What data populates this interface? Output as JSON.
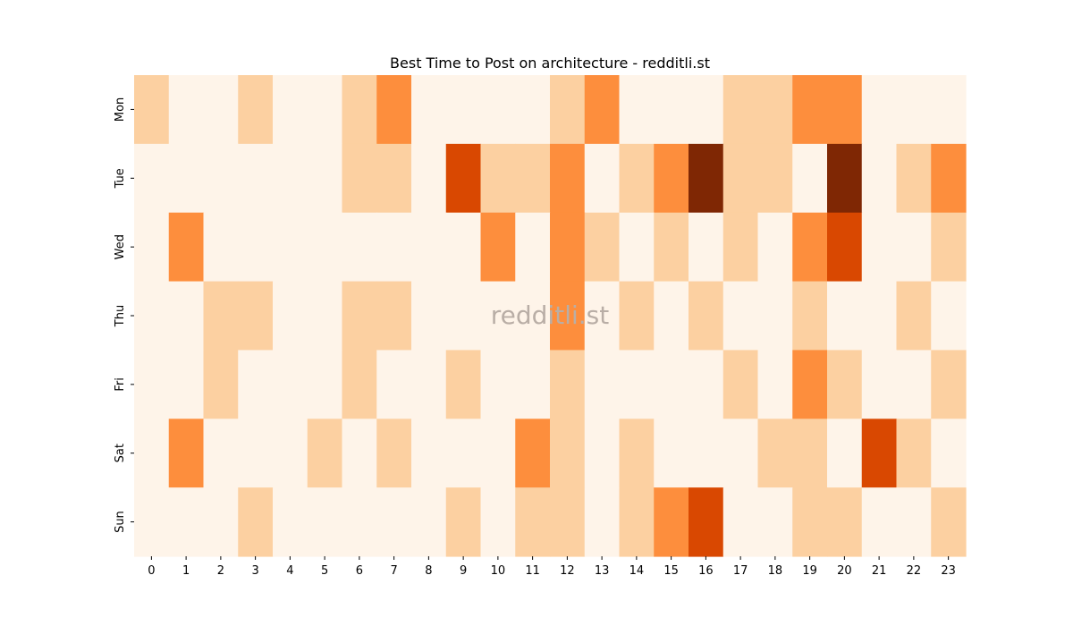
{
  "chart_data": {
    "type": "heatmap",
    "title": "Best Time to Post on architecture - redditli.st",
    "watermark": "redditli.st",
    "xlabel": "",
    "ylabel": "",
    "x_categories": [
      "0",
      "1",
      "2",
      "3",
      "4",
      "5",
      "6",
      "7",
      "8",
      "9",
      "10",
      "11",
      "12",
      "13",
      "14",
      "15",
      "16",
      "17",
      "18",
      "19",
      "20",
      "21",
      "22",
      "23"
    ],
    "y_categories": [
      "Mon",
      "Tue",
      "Wed",
      "Thu",
      "Fri",
      "Sat",
      "Sun"
    ],
    "values": [
      [
        1,
        0,
        0,
        1,
        0,
        0,
        1,
        2,
        0,
        0,
        0,
        0,
        1,
        2,
        0,
        0,
        0,
        1,
        1,
        2,
        2,
        0,
        0,
        0
      ],
      [
        0,
        0,
        0,
        0,
        0,
        0,
        1,
        1,
        0,
        3,
        1,
        1,
        2,
        0,
        1,
        2,
        4,
        1,
        1,
        0,
        4,
        0,
        1,
        2
      ],
      [
        0,
        2,
        0,
        0,
        0,
        0,
        0,
        0,
        0,
        0,
        2,
        0,
        2,
        1,
        0,
        1,
        0,
        1,
        0,
        2,
        3,
        0,
        0,
        1
      ],
      [
        0,
        0,
        1,
        1,
        0,
        0,
        1,
        1,
        0,
        0,
        0,
        0,
        2,
        0,
        1,
        0,
        1,
        0,
        0,
        1,
        0,
        0,
        1,
        0
      ],
      [
        0,
        0,
        1,
        0,
        0,
        0,
        1,
        0,
        0,
        1,
        0,
        0,
        1,
        0,
        0,
        0,
        0,
        1,
        0,
        2,
        1,
        0,
        0,
        1
      ],
      [
        0,
        2,
        0,
        0,
        0,
        1,
        0,
        1,
        0,
        0,
        0,
        2,
        1,
        0,
        1,
        0,
        0,
        0,
        1,
        1,
        0,
        3,
        1,
        0
      ],
      [
        0,
        0,
        0,
        1,
        0,
        0,
        0,
        0,
        0,
        1,
        0,
        1,
        1,
        0,
        1,
        2,
        3,
        0,
        0,
        1,
        1,
        0,
        0,
        1
      ]
    ],
    "colorscale": [
      "#fef4e9",
      "#fcd0a1",
      "#fd8e3d",
      "#d94801",
      "#7f2704"
    ],
    "grid": false,
    "legend": "none"
  }
}
